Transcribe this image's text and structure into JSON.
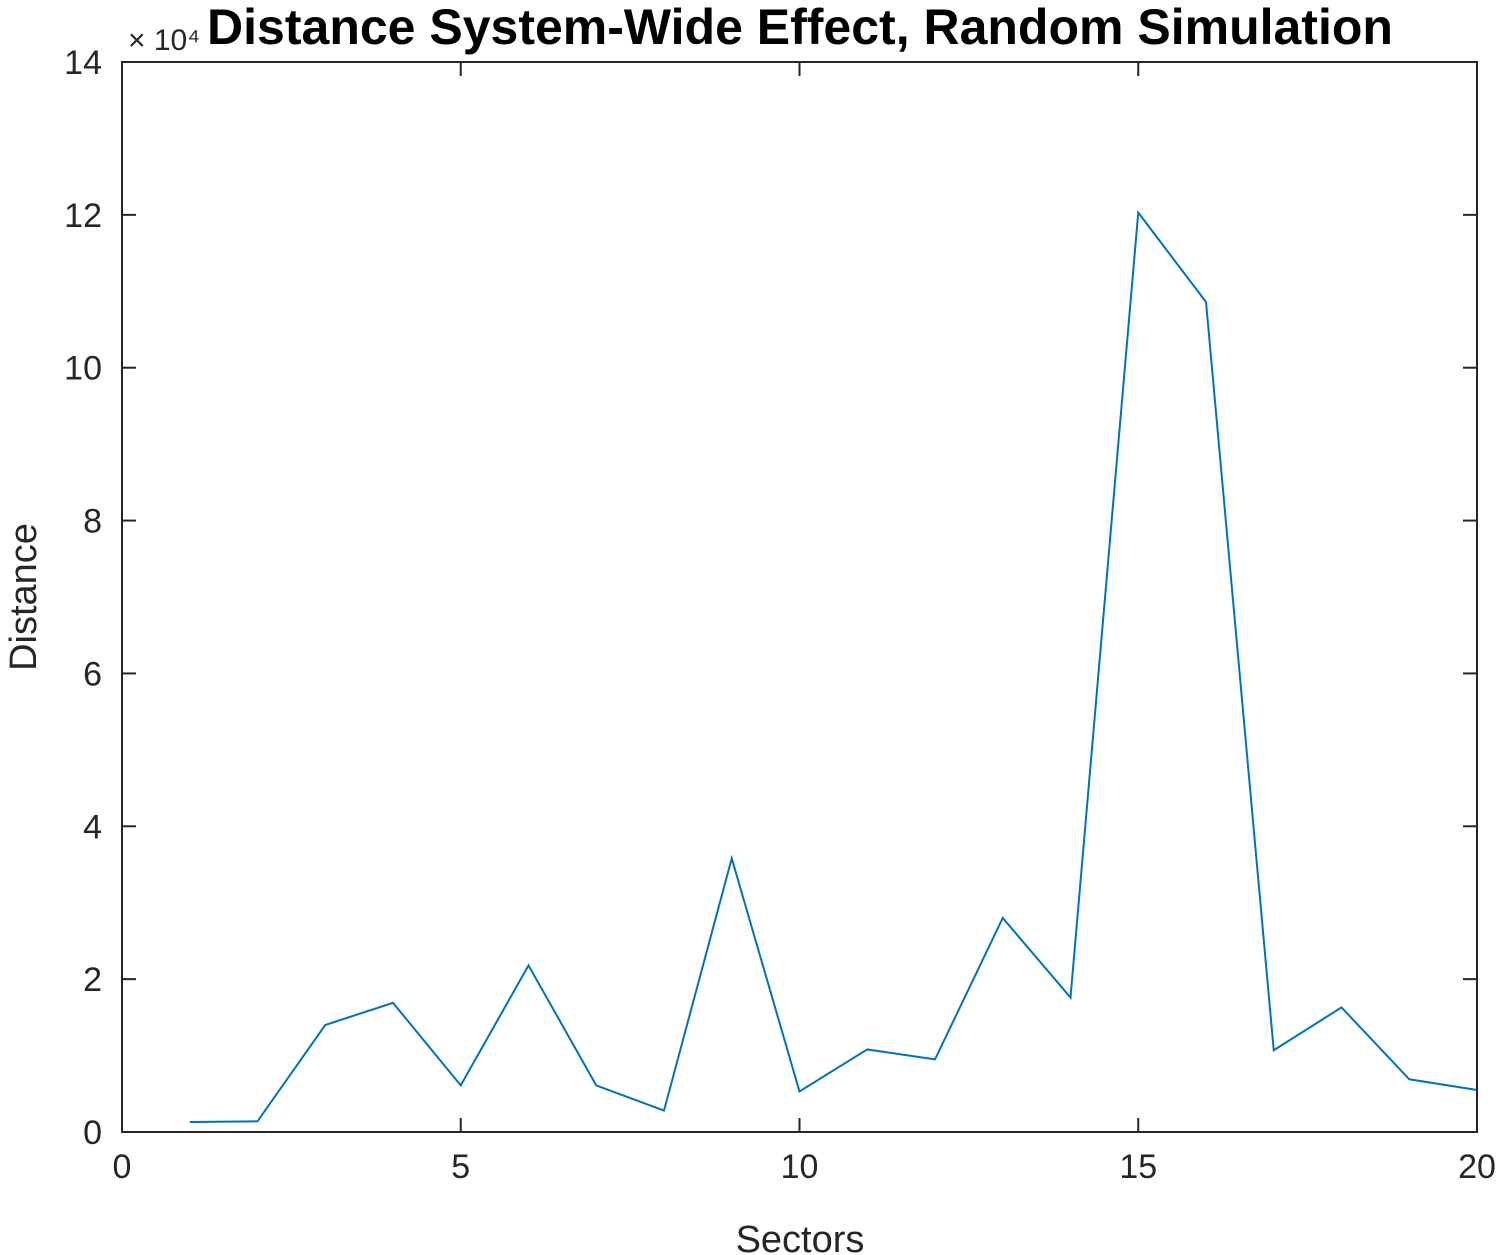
{
  "chart_data": {
    "type": "line",
    "title": "Distance System-Wide Effect, Random Simulation",
    "xlabel": "Sectors",
    "ylabel": "Distance",
    "y_multiplier_label": "× 10⁴",
    "xlim": [
      0,
      20
    ],
    "ylim": [
      0,
      14
    ],
    "xticks": [
      0,
      5,
      10,
      15,
      20
    ],
    "yticks": [
      0,
      2,
      4,
      6,
      8,
      10,
      12,
      14
    ],
    "x": [
      1,
      2,
      3,
      4,
      5,
      6,
      7,
      8,
      9,
      10,
      11,
      12,
      13,
      14,
      15,
      16,
      17,
      18,
      19,
      20
    ],
    "series": [
      {
        "values": [
          0.13,
          0.14,
          1.4,
          1.69,
          0.61,
          2.18,
          0.61,
          0.28,
          3.58,
          0.53,
          1.08,
          0.95,
          2.8,
          1.76,
          12.03,
          10.86,
          1.07,
          1.63,
          0.69,
          0.55
        ],
        "color": "#0072BD"
      }
    ],
    "grid": false,
    "box": true
  }
}
